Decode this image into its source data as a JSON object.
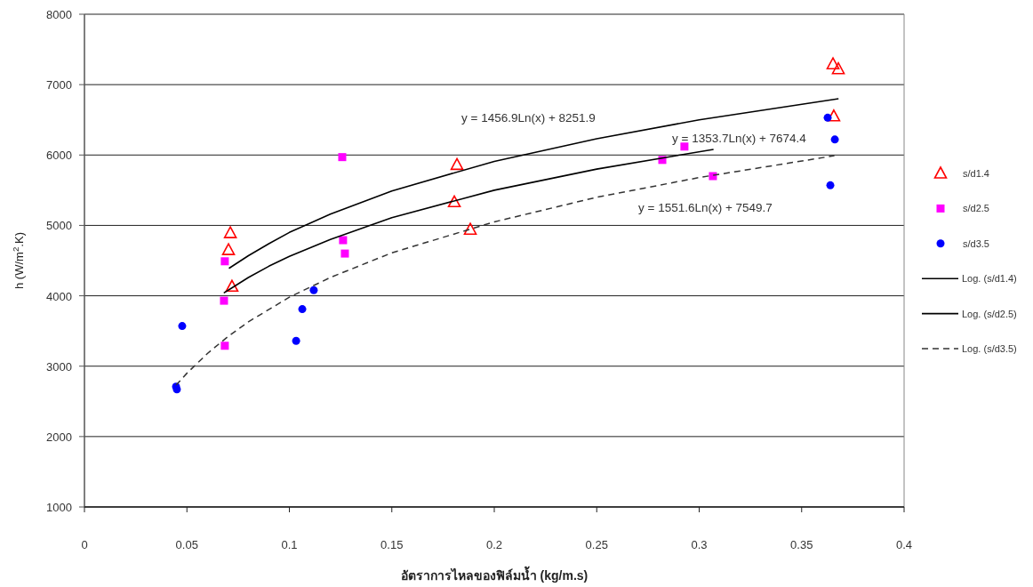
{
  "chart_data": {
    "type": "scatter",
    "xlabel": "อัตราการไหลของฟิล์มน้ำ (kg/m.s)",
    "ylabel": "h (W/m$^{2}$.K)",
    "xlim": [
      0,
      0.4
    ],
    "ylim": [
      1000,
      8000
    ],
    "xticks": [
      0,
      0.05,
      0.1,
      0.15,
      0.2,
      0.25,
      0.3,
      0.35,
      0.4
    ],
    "yticks": [
      1000,
      2000,
      3000,
      4000,
      5000,
      6000,
      7000,
      8000
    ],
    "grid": "y",
    "legend": "right",
    "annotations": [
      "y = 1456.9Ln(x) + 8251.9",
      "y = 1353.7Ln(x) + 7674.4",
      "y = 1551.6Ln(x) + 7549.7"
    ],
    "series": [
      {
        "name": "s/d1.4",
        "marker": "triangle",
        "color": "#ff0000",
        "x": [
          0.0712,
          0.0703,
          0.072,
          0.1818,
          0.1805,
          0.1883,
          0.3653,
          0.3679,
          0.3657
        ],
        "values": [
          4890,
          4650,
          4130,
          5860,
          5330,
          4940,
          7290,
          7220,
          6550
        ]
      },
      {
        "name": "s/d2.5",
        "marker": "square",
        "color": "#ff00ff",
        "x": [
          0.1258,
          0.0685,
          0.0681,
          0.0685,
          0.1262,
          0.1271,
          0.282,
          0.2928,
          0.3067
        ],
        "values": [
          5970,
          4490,
          3930,
          3290,
          4790,
          4600,
          5930,
          6120,
          5700
        ]
      },
      {
        "name": "s/d3.5",
        "marker": "circle",
        "color": "#0000ff",
        "x": [
          0.0477,
          0.0447,
          0.0451,
          0.1033,
          0.1063,
          0.1119,
          0.3627,
          0.3662,
          0.364
        ],
        "values": [
          3570,
          2710,
          2670,
          3360,
          3810,
          4080,
          6530,
          6220,
          5570
        ]
      },
      {
        "name": "Log. (s/d1.4)",
        "type": "line",
        "line_style": "solid",
        "color": "#000000",
        "x": [
          0.0705,
          0.08,
          0.09,
          0.1,
          0.12,
          0.15,
          0.2,
          0.25,
          0.3,
          0.368
        ],
        "values": [
          4390,
          4570,
          4740,
          4900,
          5160,
          5490,
          5910,
          6230,
          6500,
          6800
        ]
      },
      {
        "name": "Log. (s/d2.5)",
        "type": "line",
        "line_style": "solid",
        "color": "#000000",
        "x": [
          0.068,
          0.08,
          0.09,
          0.1,
          0.12,
          0.15,
          0.2,
          0.25,
          0.307
        ],
        "values": [
          4040,
          4260,
          4420,
          4560,
          4800,
          5110,
          5500,
          5800,
          6080
        ]
      },
      {
        "name": "Log. (s/d3.5)",
        "type": "line",
        "line_style": "dashed",
        "color": "#333333",
        "x": [
          0.0447,
          0.05,
          0.06,
          0.07,
          0.08,
          0.1,
          0.12,
          0.15,
          0.2,
          0.25,
          0.3,
          0.366
        ],
        "values": [
          2730,
          2900,
          3180,
          3420,
          3630,
          3980,
          4260,
          4610,
          5050,
          5400,
          5680,
          5990
        ]
      }
    ]
  }
}
